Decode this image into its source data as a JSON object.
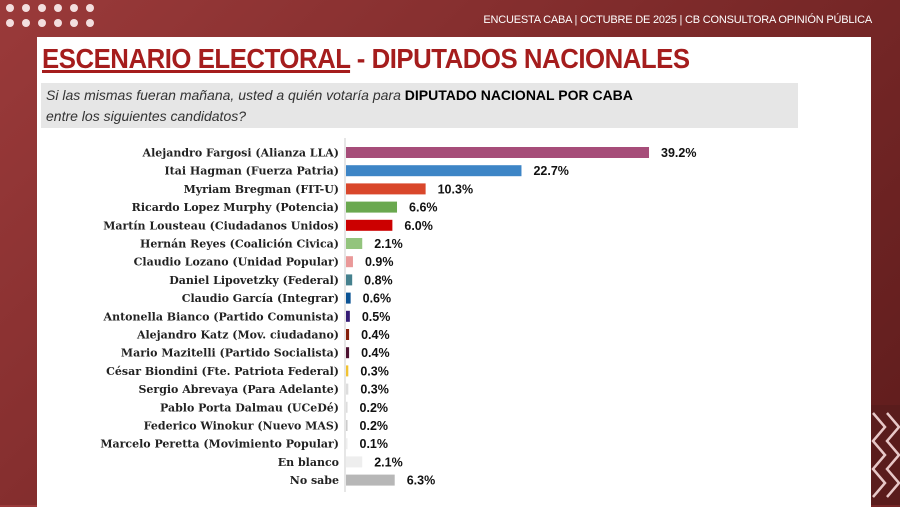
{
  "header": "ENCUESTA CABA | OCTUBRE DE 2025 | CB CONSULTORA OPINIÓN PÚBLICA",
  "title_main": "ESCENARIO ELECTORAL",
  "title_rest": " - DIPUTADOS NACIONALES",
  "question_pre": "Si las mismas fueran mañana, usted a quién votaría para ",
  "question_bold": "DIPUTADO NACIONAL POR CABA",
  "question_post": "entre los siguientes candidatos?",
  "chart_data": {
    "type": "bar",
    "orientation": "horizontal",
    "categories": [
      "Alejandro Fargosi (Alianza LLA)",
      "Itai Hagman (Fuerza Patria)",
      "Myriam Bregman (FIT-U)",
      "Ricardo Lopez Murphy (Potencia)",
      "Martín Lousteau (Ciudadanos Unidos)",
      "Hernán Reyes (Coalición Civica)",
      "Claudio Lozano (Unidad Popular)",
      "Daniel Lipovetzky (Federal)",
      "Claudio García (Integrar)",
      "Antonella Bianco (Partido Comunista)",
      "Alejandro Katz (Mov. ciudadano)",
      "Mario Mazitelli (Partido Socialista)",
      "César Biondini (Fte. Patriota Federal)",
      "Sergio Abrevaya (Para Adelante)",
      "Pablo Porta Dalmau (UCeDé)",
      "Federico Winokur (Nuevo MAS)",
      "Marcelo Peretta (Movimiento Popular)",
      "En blanco",
      "No sabe"
    ],
    "values": [
      39.2,
      22.7,
      10.3,
      6.6,
      6.0,
      2.1,
      0.9,
      0.8,
      0.6,
      0.5,
      0.4,
      0.4,
      0.3,
      0.3,
      0.2,
      0.2,
      0.1,
      2.1,
      6.3
    ],
    "labels": [
      "39.2%",
      "22.7%",
      "10.3%",
      "6.6%",
      "6.0%",
      "2.1%",
      "0.9%",
      "0.8%",
      "0.6%",
      "0.5%",
      "0.4%",
      "0.4%",
      "0.3%",
      "0.3%",
      "0.2%",
      "0.2%",
      "0.1%",
      "2.1%",
      "6.3%"
    ],
    "colors": [
      "#a64d79",
      "#3d85c6",
      "#d9472b",
      "#6aa84f",
      "#cc0000",
      "#93c47d",
      "#ea9999",
      "#45818e",
      "#0b5394",
      "#351c75",
      "#85200c",
      "#4c1130",
      "#f1c232",
      "#dddddd",
      "#dddddd",
      "#cccccc",
      "#eeeeee",
      "#eeeeee",
      "#b7b7b7"
    ],
    "unit": "%",
    "grid": false,
    "legend": "none"
  }
}
